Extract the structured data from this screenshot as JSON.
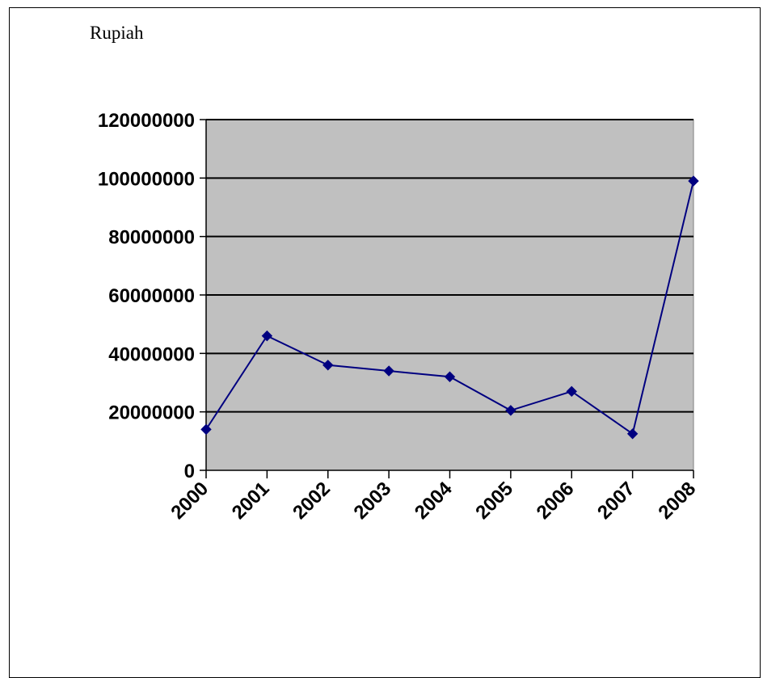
{
  "chart_data": {
    "type": "line",
    "title": "",
    "unit_label": "Rupiah",
    "xlabel": "",
    "ylabel": "",
    "categories": [
      "2000",
      "2001",
      "2002",
      "2003",
      "2004",
      "2005",
      "2006",
      "2007",
      "2008"
    ],
    "series": [
      {
        "values": [
          14000000,
          46000000,
          36000000,
          34000000,
          32000000,
          20500000,
          27000000,
          12500000,
          99000000
        ]
      }
    ],
    "y_ticks": [
      "0",
      "20000000",
      "40000000",
      "60000000",
      "80000000",
      "100000000",
      "120000000"
    ],
    "ylim": [
      0,
      120000000
    ],
    "grid": true,
    "legend": false,
    "colors": {
      "plot_background": "#c0c0c0",
      "line": "#000080",
      "marker": "#000080",
      "gridline": "#000000"
    },
    "marker": "diamond"
  }
}
